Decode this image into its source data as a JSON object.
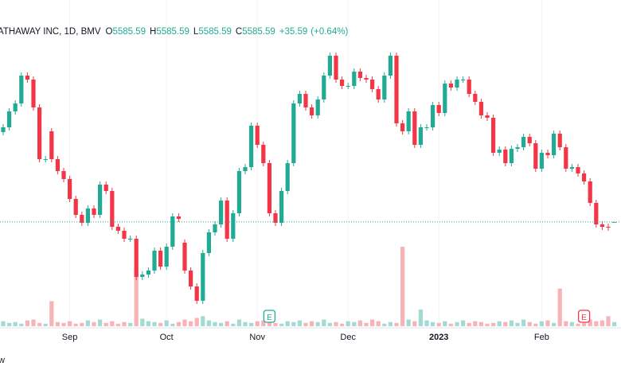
{
  "chart_data": {
    "type": "candlestick",
    "title": "ATHAWAY INC, 1D, BMV",
    "ohlc_letters": [
      "O",
      "H",
      "L",
      "C"
    ],
    "change": "+35.59",
    "change_pct": "(+0.64%)",
    "footer_text": "w",
    "up_color": "#22ab94",
    "down_color": "#f23645",
    "volume_up_color": "#a3dbd4",
    "volume_down_color": "#f7b4b6",
    "ylim": [
      4930,
      6980
    ],
    "categories": [
      null,
      null,
      null,
      null,
      null,
      null,
      null,
      null,
      null,
      null,
      null,
      "Sep",
      null,
      null,
      null,
      null,
      null,
      null,
      null,
      null,
      null,
      null,
      null,
      null,
      null,
      null,
      null,
      "Oct",
      null,
      null,
      null,
      null,
      null,
      null,
      null,
      null,
      null,
      null,
      null,
      null,
      null,
      null,
      "Nov",
      null,
      null,
      null,
      null,
      null,
      null,
      null,
      null,
      null,
      null,
      null,
      null,
      null,
      null,
      "Dec",
      null,
      null,
      null,
      null,
      null,
      null,
      null,
      null,
      null,
      null,
      null,
      null,
      null,
      null,
      "2023",
      null,
      null,
      null,
      null,
      null,
      null,
      null,
      null,
      null,
      null,
      null,
      null,
      null,
      null,
      null,
      null,
      "Feb",
      null,
      null,
      null,
      null,
      null,
      null,
      null,
      null,
      null,
      null,
      null,
      null
    ],
    "ohlc": [
      [
        6150,
        6200,
        6130,
        6180
      ],
      [
        6180,
        6300,
        6160,
        6280
      ],
      [
        6280,
        6350,
        6260,
        6330
      ],
      [
        6330,
        6525,
        6310,
        6505
      ],
      [
        6505,
        6525,
        6460,
        6480
      ],
      [
        6480,
        6500,
        6285,
        6305
      ],
      [
        6305,
        6325,
        5960,
        5980
      ],
      [
        5980,
        6000,
        5960,
        5980
      ],
      [
        6155,
        6175,
        5960,
        5980
      ],
      [
        5980,
        6000,
        5885,
        5905
      ],
      [
        5905,
        5925,
        5835,
        5855
      ],
      [
        5855,
        5875,
        5710,
        5730
      ],
      [
        5730,
        5750,
        5610,
        5630
      ],
      [
        5630,
        5650,
        5560,
        5580
      ],
      [
        5580,
        5690,
        5560,
        5670
      ],
      [
        5670,
        5690,
        5610,
        5630
      ],
      [
        5630,
        5840,
        5610,
        5820
      ],
      [
        5820,
        5840,
        5760,
        5780
      ],
      [
        5780,
        5800,
        5535,
        5555
      ],
      [
        5555,
        5575,
        5510,
        5530
      ],
      [
        5530,
        5550,
        5460,
        5480
      ],
      [
        5480,
        5500,
        5460,
        5480
      ],
      [
        5480,
        5500,
        5220,
        5240
      ],
      [
        5240,
        5275,
        5220,
        5255
      ],
      [
        5255,
        5300,
        5235,
        5280
      ],
      [
        5280,
        5425,
        5260,
        5405
      ],
      [
        5405,
        5425,
        5285,
        5305
      ],
      [
        5305,
        5450,
        5285,
        5430
      ],
      [
        5430,
        5640,
        5410,
        5620
      ],
      [
        5620,
        5640,
        5585,
        5605
      ],
      [
        5455,
        5475,
        5260,
        5280
      ],
      [
        5280,
        5300,
        5160,
        5180
      ],
      [
        5180,
        5200,
        5070,
        5090
      ],
      [
        5090,
        5410,
        5070,
        5390
      ],
      [
        5390,
        5540,
        5370,
        5520
      ],
      [
        5520,
        5590,
        5500,
        5570
      ],
      [
        5570,
        5740,
        5550,
        5720
      ],
      [
        5720,
        5740,
        5460,
        5480
      ],
      [
        5480,
        5660,
        5460,
        5640
      ],
      [
        5640,
        5925,
        5620,
        5905
      ],
      [
        5905,
        5950,
        5885,
        5930
      ],
      [
        5930,
        6210,
        5910,
        6190
      ],
      [
        6190,
        6210,
        6050,
        6070
      ],
      [
        6070,
        6090,
        5935,
        5955
      ],
      [
        5955,
        5975,
        5620,
        5640
      ],
      [
        5640,
        5660,
        5560,
        5580
      ],
      [
        5580,
        5800,
        5560,
        5780
      ],
      [
        5780,
        5975,
        5760,
        5955
      ],
      [
        5955,
        6350,
        5935,
        6330
      ],
      [
        6330,
        6410,
        6310,
        6390
      ],
      [
        6390,
        6410,
        6285,
        6305
      ],
      [
        6305,
        6325,
        6235,
        6255
      ],
      [
        6255,
        6375,
        6235,
        6355
      ],
      [
        6355,
        6525,
        6335,
        6505
      ],
      [
        6505,
        6650,
        6485,
        6630
      ],
      [
        6630,
        6650,
        6460,
        6480
      ],
      [
        6480,
        6500,
        6420,
        6440
      ],
      [
        6440,
        6460,
        6420,
        6440
      ],
      [
        6440,
        6550,
        6420,
        6530
      ],
      [
        6530,
        6550,
        6470,
        6490
      ],
      [
        6490,
        6510,
        6460,
        6480
      ],
      [
        6480,
        6500,
        6400,
        6420
      ],
      [
        6420,
        6440,
        6335,
        6355
      ],
      [
        6355,
        6525,
        6335,
        6505
      ],
      [
        6505,
        6650,
        6485,
        6630
      ],
      [
        6630,
        6650,
        6185,
        6205
      ],
      [
        6205,
        6225,
        6135,
        6155
      ],
      [
        6155,
        6300,
        6135,
        6280
      ],
      [
        6280,
        6300,
        6050,
        6070
      ],
      [
        6070,
        6200,
        6050,
        6180
      ],
      [
        6180,
        6200,
        6160,
        6180
      ],
      [
        6180,
        6340,
        6160,
        6320
      ],
      [
        6320,
        6340,
        6250,
        6270
      ],
      [
        6270,
        6475,
        6250,
        6455
      ],
      [
        6455,
        6475,
        6410,
        6430
      ],
      [
        6430,
        6500,
        6410,
        6480
      ],
      [
        6480,
        6500,
        6460,
        6480
      ],
      [
        6480,
        6500,
        6370,
        6390
      ],
      [
        6390,
        6410,
        6320,
        6340
      ],
      [
        6340,
        6360,
        6235,
        6255
      ],
      [
        6255,
        6275,
        6220,
        6240
      ],
      [
        6240,
        6260,
        6000,
        6020
      ],
      [
        6020,
        6060,
        6000,
        6040
      ],
      [
        6040,
        6060,
        5935,
        5955
      ],
      [
        5955,
        6065,
        5935,
        6045
      ],
      [
        6045,
        6075,
        6025,
        6055
      ],
      [
        6055,
        6140,
        6035,
        6120
      ],
      [
        6120,
        6140,
        6060,
        6080
      ],
      [
        6080,
        6100,
        5900,
        5920
      ],
      [
        5920,
        6040,
        5900,
        6020
      ],
      [
        6020,
        6040,
        5985,
        6005
      ],
      [
        6005,
        6160,
        5985,
        6140
      ],
      [
        6140,
        6160,
        6035,
        6055
      ],
      [
        6055,
        6075,
        5900,
        5920
      ],
      [
        5920,
        5950,
        5900,
        5930
      ],
      [
        5930,
        5950,
        5870,
        5890
      ],
      [
        5890,
        5910,
        5820,
        5840
      ],
      [
        5840,
        5860,
        5685,
        5705
      ],
      [
        5705,
        5725,
        5550,
        5570
      ],
      [
        5570,
        5590,
        5535,
        5555
      ],
      [
        5555,
        5575,
        5530,
        5550
      ],
      [
        5585.59,
        5585.59,
        5585.59,
        5585.59
      ]
    ],
    "volume": [
      600,
      400,
      500,
      300,
      700,
      800,
      400,
      300,
      3000,
      500,
      400,
      600,
      300,
      400,
      700,
      500,
      800,
      400,
      600,
      300,
      500,
      400,
      6500,
      900,
      600,
      500,
      400,
      700,
      300,
      500,
      800,
      600,
      1000,
      1200,
      700,
      500,
      400,
      600,
      300,
      800,
      500,
      400,
      600,
      700,
      500,
      400,
      300,
      600,
      500,
      700,
      400,
      600,
      500,
      800,
      400,
      500,
      300,
      600,
      500,
      700,
      400,
      800,
      600,
      300,
      500,
      400,
      9500,
      800,
      600,
      2000,
      700,
      500,
      400,
      600,
      300,
      500,
      700,
      400,
      600,
      500,
      300,
      400,
      600,
      500,
      700,
      400,
      800,
      500,
      300,
      600,
      700,
      400,
      4500,
      600,
      500,
      300,
      400,
      800,
      600,
      700,
      1200,
      500
    ],
    "events": [
      null,
      null,
      null,
      null,
      null,
      null,
      null,
      null,
      null,
      null,
      null,
      null,
      null,
      null,
      null,
      null,
      null,
      null,
      null,
      null,
      null,
      null,
      null,
      null,
      null,
      null,
      null,
      null,
      null,
      null,
      null,
      null,
      null,
      null,
      null,
      null,
      null,
      null,
      null,
      null,
      null,
      null,
      null,
      null,
      {
        "label": "E",
        "color": "#22ab94"
      },
      null,
      null,
      null,
      null,
      null,
      null,
      null,
      null,
      null,
      null,
      null,
      null,
      null,
      null,
      null,
      null,
      null,
      null,
      null,
      null,
      null,
      null,
      null,
      null,
      null,
      null,
      null,
      null,
      null,
      null,
      null,
      null,
      null,
      null,
      null,
      null,
      null,
      null,
      null,
      null,
      null,
      null,
      null,
      null,
      null,
      null,
      null,
      null,
      null,
      null,
      null,
      {
        "label": "E",
        "color": "#f23645"
      },
      null
    ]
  }
}
